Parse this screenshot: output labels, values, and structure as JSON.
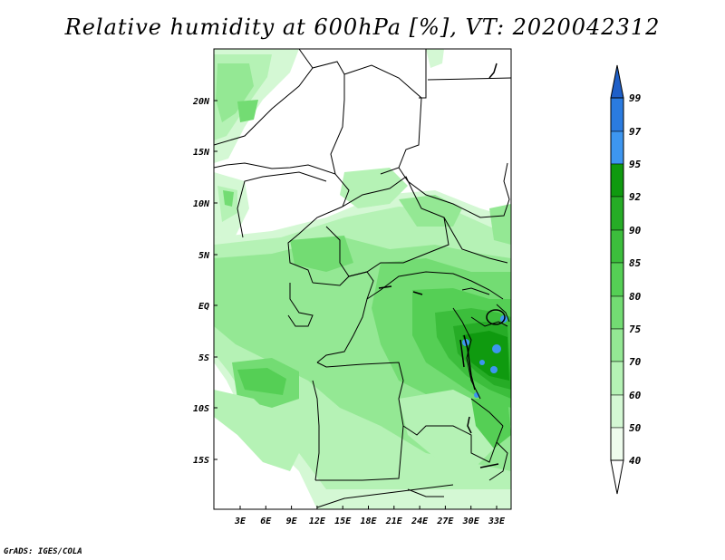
{
  "title": "Relative humidity at 600hPa [%], VT: 2020042312",
  "credit": "GrADS: IGES/COLA",
  "map": {
    "lat_labels": [
      "20N",
      "15N",
      "10N",
      "5N",
      "EQ",
      "5S",
      "10S",
      "15S"
    ],
    "lon_labels": [
      "3E",
      "6E",
      "9E",
      "12E",
      "15E",
      "18E",
      "21E",
      "24E",
      "27E",
      "30E",
      "33E"
    ]
  },
  "colorbar": {
    "labels": [
      "99",
      "97",
      "95",
      "92",
      "90",
      "85",
      "80",
      "75",
      "70",
      "60",
      "50",
      "40"
    ],
    "colors": [
      "#1e5fc8",
      "#2a7be0",
      "#3d96f0",
      "#0f9a0f",
      "#26ac26",
      "#3cbe3c",
      "#55cf55",
      "#73dc73",
      "#94e894",
      "#b5f2b5",
      "#d4f8d4",
      "#eefced"
    ]
  }
}
